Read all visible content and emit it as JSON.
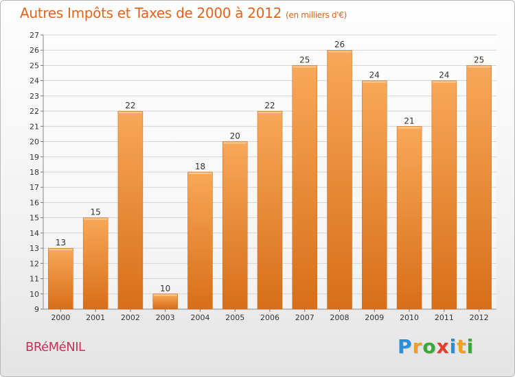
{
  "header": {
    "title": "Autres Impôts et Taxes de 2000 à 2012",
    "unit": "(en milliers d'€)"
  },
  "footer": {
    "town": "BRéMéNIL",
    "logo_letters": [
      "P",
      "r",
      "o",
      "x",
      "i",
      "t",
      "i"
    ],
    "logo_colors": [
      "#2a8fd6",
      "#f0a020",
      "#3aa83a",
      "#e0402a",
      "#2a8fd6",
      "#f0a020",
      "#3aa83a"
    ]
  },
  "chart_data": {
    "type": "bar",
    "categories": [
      "2000",
      "2001",
      "2002",
      "2003",
      "2004",
      "2005",
      "2006",
      "2007",
      "2008",
      "2009",
      "2010",
      "2011",
      "2012"
    ],
    "values": [
      13,
      15,
      22,
      10,
      18,
      20,
      22,
      25,
      26,
      24,
      21,
      24,
      25
    ],
    "ylim": [
      9,
      27
    ],
    "yticks": [
      9,
      10,
      11,
      12,
      13,
      14,
      15,
      16,
      17,
      18,
      19,
      20,
      21,
      22,
      23,
      24,
      25,
      26,
      27
    ],
    "grid": true,
    "bar_color": "#f08c30",
    "bar_color_light": "#f7a858",
    "bar_color_dark": "#d86e18",
    "axis_text_color": "#333333"
  }
}
